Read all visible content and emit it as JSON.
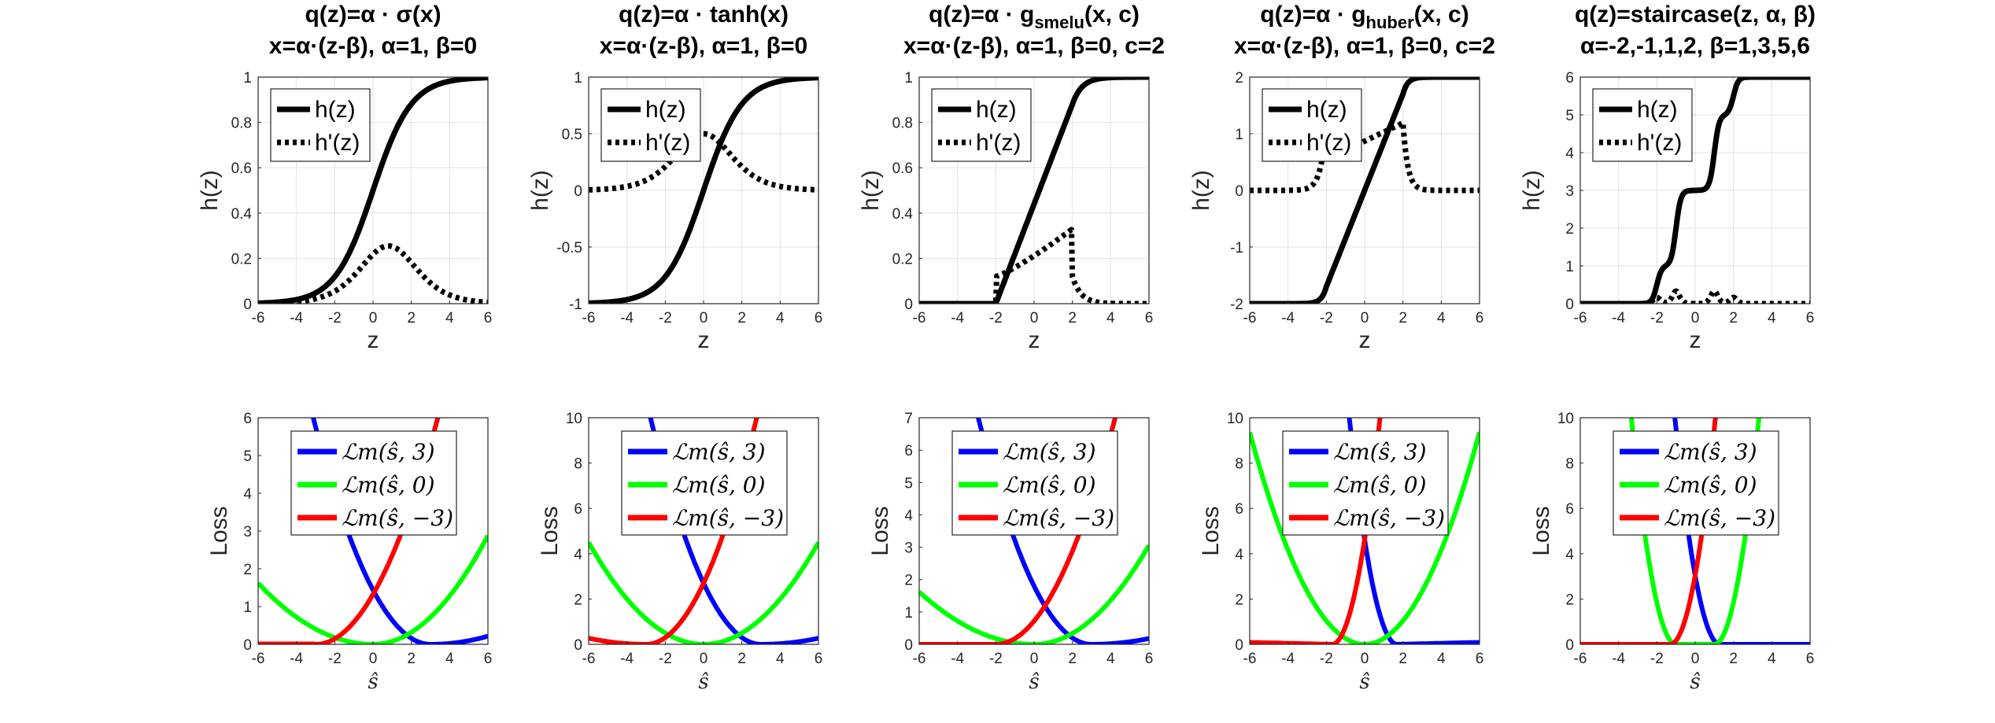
{
  "figure": {
    "background": "#ffffff"
  },
  "chart_data": [
    {
      "type": "line",
      "title_line1": "q(z)=α · σ(x)",
      "title_line2": "x=α·(z-β), α=1, β=0",
      "xlabel": "z",
      "ylabel": "h(z)",
      "xlim": [
        -6,
        6
      ],
      "ylim": [
        0,
        1
      ],
      "xticks": [
        -6,
        -4,
        -2,
        0,
        2,
        4,
        6
      ],
      "yticks": [
        0,
        0.2,
        0.4,
        0.6,
        0.8,
        1
      ],
      "ytick_labels": [
        "0",
        "0.2",
        "0.4",
        "0.6",
        "0.8",
        "1"
      ],
      "grid": true,
      "legend_location": "top-left",
      "series": [
        {
          "name": "h(z)",
          "style": "solid",
          "color": "#000000",
          "fn": "sigmoid",
          "params": {
            "a": 1,
            "b": 0
          }
        },
        {
          "name": "h'(z)",
          "style": "dotted",
          "color": "#000000",
          "fn": "sigmoid_deriv",
          "params": {
            "a": 1,
            "b": 0
          }
        }
      ]
    },
    {
      "type": "line",
      "title_line1": "q(z)=α · tanh(x)",
      "title_line2": "x=α·(z-β), α=1, β=0",
      "xlabel": "z",
      "ylabel": "h(z)",
      "xlim": [
        -6,
        6
      ],
      "ylim": [
        -1,
        1
      ],
      "xticks": [
        -6,
        -4,
        -2,
        0,
        2,
        4,
        6
      ],
      "yticks": [
        -1,
        -0.5,
        0,
        0.5,
        1
      ],
      "ytick_labels": [
        "-1",
        "-0.5",
        "0",
        "0.5",
        "1"
      ],
      "grid": true,
      "legend_location": "top-left",
      "series": [
        {
          "name": "h(z)",
          "style": "solid",
          "color": "#000000",
          "fn": "tanh",
          "params": {
            "a": 1,
            "b": 0
          }
        },
        {
          "name": "h'(z)",
          "style": "dotted",
          "color": "#000000",
          "fn": "tanh_deriv",
          "params": {
            "a": 1,
            "b": 0
          }
        }
      ]
    },
    {
      "type": "line",
      "title_line1": "q(z)=α · g",
      "title_sub": "smelu",
      "title_line1_tail": "(x, c)",
      "title_line2": "x=α·(z-β), α=1, β=0, c=2",
      "xlabel": "z",
      "ylabel": "h(z)",
      "xlim": [
        -6,
        6
      ],
      "ylim": [
        0,
        1
      ],
      "xticks": [
        -6,
        -4,
        -2,
        0,
        2,
        4,
        6
      ],
      "yticks": [
        0,
        0.2,
        0.4,
        0.6,
        0.8,
        1
      ],
      "ytick_labels": [
        "0",
        "0.2",
        "0.4",
        "0.6",
        "0.8",
        "1"
      ],
      "grid": true,
      "legend_location": "top-left",
      "series": [
        {
          "name": "h(z)",
          "style": "solid",
          "color": "#000000",
          "fn": "smelu",
          "params": {
            "c": 2
          }
        },
        {
          "name": "h'(z)",
          "style": "dotted",
          "color": "#000000",
          "fn": "smelu_deriv",
          "params": {
            "c": 2
          }
        }
      ]
    },
    {
      "type": "line",
      "title_line1": "q(z)=α · g",
      "title_sub": "huber",
      "title_line1_tail": "(x, c)",
      "title_line2": "x=α·(z-β), α=1, β=0, c=2",
      "xlabel": "z",
      "ylabel": "h(z)",
      "xlim": [
        -6,
        6
      ],
      "ylim": [
        -2,
        2
      ],
      "xticks": [
        -6,
        -4,
        -2,
        0,
        2,
        4,
        6
      ],
      "yticks": [
        -2,
        -1,
        0,
        1,
        2
      ],
      "ytick_labels": [
        "-2",
        "-1",
        "0",
        "1",
        "2"
      ],
      "grid": true,
      "legend_location": "top-left",
      "series": [
        {
          "name": "h(z)",
          "style": "solid",
          "color": "#000000",
          "fn": "huber",
          "params": {
            "c": 2
          }
        },
        {
          "name": "h'(z)",
          "style": "dotted",
          "color": "#000000",
          "fn": "huber_deriv",
          "params": {
            "c": 2
          }
        }
      ]
    },
    {
      "type": "line",
      "title_line1": "q(z)=staircase(z, α, β)",
      "title_line2": "α=-2,-1,1,2, β=1,3,5,6",
      "xlabel": "z",
      "ylabel": "h(z)",
      "xlim": [
        -6,
        6
      ],
      "ylim": [
        0,
        6
      ],
      "xticks": [
        -6,
        -4,
        -2,
        0,
        2,
        4,
        6
      ],
      "yticks": [
        0,
        1,
        2,
        3,
        4,
        5,
        6
      ],
      "ytick_labels": [
        "0",
        "1",
        "2",
        "3",
        "4",
        "5",
        "6"
      ],
      "grid": true,
      "legend_location": "top-left",
      "series": [
        {
          "name": "h(z)",
          "style": "solid",
          "color": "#000000",
          "fn": "staircase",
          "params": {
            "a": [
              -2,
              -1,
              1,
              2
            ],
            "b": [
              1,
              3,
              5,
              6
            ]
          }
        },
        {
          "name": "h'(z)",
          "style": "dotted",
          "color": "#000000",
          "fn": "staircase_deriv",
          "params": {
            "a": [
              -2,
              -1,
              1,
              2
            ],
            "b": [
              1,
              3,
              5,
              6
            ]
          }
        }
      ]
    },
    {
      "type": "line",
      "xlabel": "ŝ",
      "ylabel": "Loss",
      "xlim": [
        -6,
        6
      ],
      "ylim": [
        0,
        6
      ],
      "xticks": [
        -6,
        -4,
        -2,
        0,
        2,
        4,
        6
      ],
      "yticks": [
        0,
        1,
        2,
        3,
        4,
        5,
        6
      ],
      "ytick_labels": [
        "0",
        "1",
        "2",
        "3",
        "4",
        "5",
        "6"
      ],
      "grid": false,
      "legend_location": "top-center",
      "loss_of": "sigmoid",
      "series": [
        {
          "name": "ℒm(ŝ, 3)",
          "target": 3,
          "color": "#0000ff"
        },
        {
          "name": "ℒm(ŝ, 0)",
          "target": 0,
          "color": "#00ff00"
        },
        {
          "name": "ℒm(ŝ, −3)",
          "target": -3,
          "color": "#ff0000"
        }
      ]
    },
    {
      "type": "line",
      "xlabel": "ŝ",
      "ylabel": "Loss",
      "xlim": [
        -6,
        6
      ],
      "ylim": [
        0,
        10
      ],
      "xticks": [
        -6,
        -4,
        -2,
        0,
        2,
        4,
        6
      ],
      "yticks": [
        0,
        2,
        4,
        6,
        8,
        10
      ],
      "ytick_labels": [
        "0",
        "2",
        "4",
        "6",
        "8",
        "10"
      ],
      "grid": false,
      "legend_location": "top-center",
      "loss_of": "tanh",
      "series": [
        {
          "name": "ℒm(ŝ, 3)",
          "target": 3,
          "color": "#0000ff"
        },
        {
          "name": "ℒm(ŝ, 0)",
          "target": 0,
          "color": "#00ff00"
        },
        {
          "name": "ℒm(ŝ, −3)",
          "target": -3,
          "color": "#ff0000"
        }
      ]
    },
    {
      "type": "line",
      "xlabel": "ŝ",
      "ylabel": "Loss",
      "xlim": [
        -6,
        6
      ],
      "ylim": [
        0,
        7
      ],
      "xticks": [
        -6,
        -4,
        -2,
        0,
        2,
        4,
        6
      ],
      "yticks": [
        0,
        1,
        2,
        3,
        4,
        5,
        6,
        7
      ],
      "ytick_labels": [
        "0",
        "1",
        "2",
        "3",
        "4",
        "5",
        "6",
        "7"
      ],
      "grid": false,
      "legend_location": "top-center",
      "loss_of": "smelu",
      "series": [
        {
          "name": "ℒm(ŝ, 3)",
          "target": 3,
          "color": "#0000ff"
        },
        {
          "name": "ℒm(ŝ, 0)",
          "target": 0,
          "color": "#00ff00"
        },
        {
          "name": "ℒm(ŝ, −3)",
          "target": -3,
          "color": "#ff0000"
        }
      ]
    },
    {
      "type": "line",
      "xlabel": "ŝ",
      "ylabel": "Loss",
      "xlim": [
        -6,
        6
      ],
      "ylim": [
        0,
        10
      ],
      "xticks": [
        -6,
        -4,
        -2,
        0,
        2,
        4,
        6
      ],
      "yticks": [
        0,
        2,
        4,
        6,
        8,
        10
      ],
      "ytick_labels": [
        "0",
        "2",
        "4",
        "6",
        "8",
        "10"
      ],
      "grid": false,
      "legend_location": "top-center",
      "loss_of": "huber",
      "series": [
        {
          "name": "ℒm(ŝ, 3)",
          "target": 3,
          "color": "#0000ff"
        },
        {
          "name": "ℒm(ŝ, 0)",
          "target": 0,
          "color": "#00ff00"
        },
        {
          "name": "ℒm(ŝ, −3)",
          "target": -3,
          "color": "#ff0000"
        }
      ]
    },
    {
      "type": "line",
      "xlabel": "ŝ",
      "ylabel": "Loss",
      "xlim": [
        -6,
        6
      ],
      "ylim": [
        0,
        10
      ],
      "xticks": [
        -6,
        -4,
        -2,
        0,
        2,
        4,
        6
      ],
      "yticks": [
        0,
        2,
        4,
        6,
        8,
        10
      ],
      "ytick_labels": [
        "0",
        "2",
        "4",
        "6",
        "8",
        "10"
      ],
      "grid": false,
      "legend_location": "top-center",
      "loss_of": "staircase",
      "series": [
        {
          "name": "ℒm(ŝ, 3)",
          "target": 3,
          "color": "#0000ff"
        },
        {
          "name": "ℒm(ŝ, 0)",
          "target": 0,
          "color": "#00ff00"
        },
        {
          "name": "ℒm(ŝ, −3)",
          "target": -3,
          "color": "#ff0000"
        }
      ]
    }
  ]
}
